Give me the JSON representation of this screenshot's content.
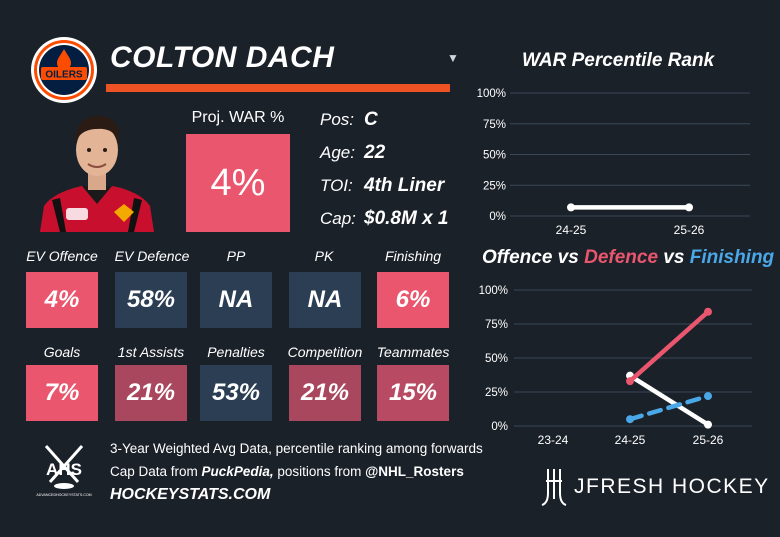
{
  "header": {
    "player_name": "COLTON DACH"
  },
  "team": {
    "logo_text": "OILERS",
    "colors": {
      "primary": "#041e42",
      "secondary": "#fc4c02"
    }
  },
  "proj_war": {
    "label": "Proj. WAR %",
    "value": "4%"
  },
  "info": [
    {
      "key": "Pos:",
      "value": "C"
    },
    {
      "key": "Age:",
      "value": "22"
    },
    {
      "key": "TOI:",
      "value": "4th Liner"
    },
    {
      "key": "Cap:",
      "value": "$0.8M x 1"
    }
  ],
  "metrics_row1": [
    {
      "label": "EV Offence",
      "value": "4%",
      "color": "#e9566e"
    },
    {
      "label": "EV Defence",
      "value": "58%",
      "color": "#2b3e53"
    },
    {
      "label": "PP",
      "value": "NA",
      "color": "#2b3e53"
    },
    {
      "label": "PK",
      "value": "NA",
      "color": "#2b3e53"
    },
    {
      "label": "Finishing",
      "value": "6%",
      "color": "#e9566e"
    }
  ],
  "metrics_row2": [
    {
      "label": "Goals",
      "value": "7%",
      "color": "#e9566e"
    },
    {
      "label": "1st Assists",
      "value": "21%",
      "color": "#a9475f"
    },
    {
      "label": "Penalties",
      "value": "53%",
      "color": "#2b3e53"
    },
    {
      "label": "Competition",
      "value": "21%",
      "color": "#a9475f"
    },
    {
      "label": "Teammates",
      "value": "15%",
      "color": "#b84a64"
    }
  ],
  "footer": {
    "ahs_logo_text": "AHS",
    "ahs_logo_sub": "ADVANCEDHOCKEYSTATS.COM",
    "line1": "3-Year Weighted Avg Data, percentile ranking among forwards",
    "line2_pre": "Cap Data from ",
    "line2_source1": "PuckPedia,",
    "line2_mid": " positions from ",
    "line2_source2": "@NHL_Rosters",
    "site_url": "HOCKEYSTATS.COM"
  },
  "brand": {
    "name": "JFRESH HOCKEY"
  },
  "chart_data": [
    {
      "type": "line",
      "title": "WAR Percentile Rank",
      "categories": [
        "24-25",
        "25-26"
      ],
      "series": [
        {
          "values": [
            7,
            7
          ],
          "color": "#ffffff"
        }
      ],
      "ylim": [
        0,
        100
      ],
      "yticks": [
        "0%",
        "25%",
        "50%",
        "75%",
        "100%"
      ],
      "grid": true
    },
    {
      "type": "line",
      "title_parts": [
        {
          "text": "Offence",
          "color": "#ffffff"
        },
        {
          "text": " vs ",
          "color": "#ffffff"
        },
        {
          "text": "Defence",
          "color": "#e9566e"
        },
        {
          "text": " vs ",
          "color": "#ffffff"
        },
        {
          "text": "Finishing",
          "color": "#4aa8e8"
        }
      ],
      "categories": [
        "23-24",
        "24-25",
        "25-26"
      ],
      "series": [
        {
          "name": "Offence",
          "values": [
            null,
            37,
            1
          ],
          "color": "#ffffff",
          "dash": false
        },
        {
          "name": "Defence",
          "values": [
            null,
            33,
            84
          ],
          "color": "#e9566e",
          "dash": false
        },
        {
          "name": "Finishing",
          "values": [
            null,
            5,
            22
          ],
          "color": "#4aa8e8",
          "dash": true
        }
      ],
      "ylim": [
        0,
        100
      ],
      "yticks": [
        "0%",
        "25%",
        "50%",
        "75%",
        "100%"
      ],
      "grid": true
    }
  ]
}
